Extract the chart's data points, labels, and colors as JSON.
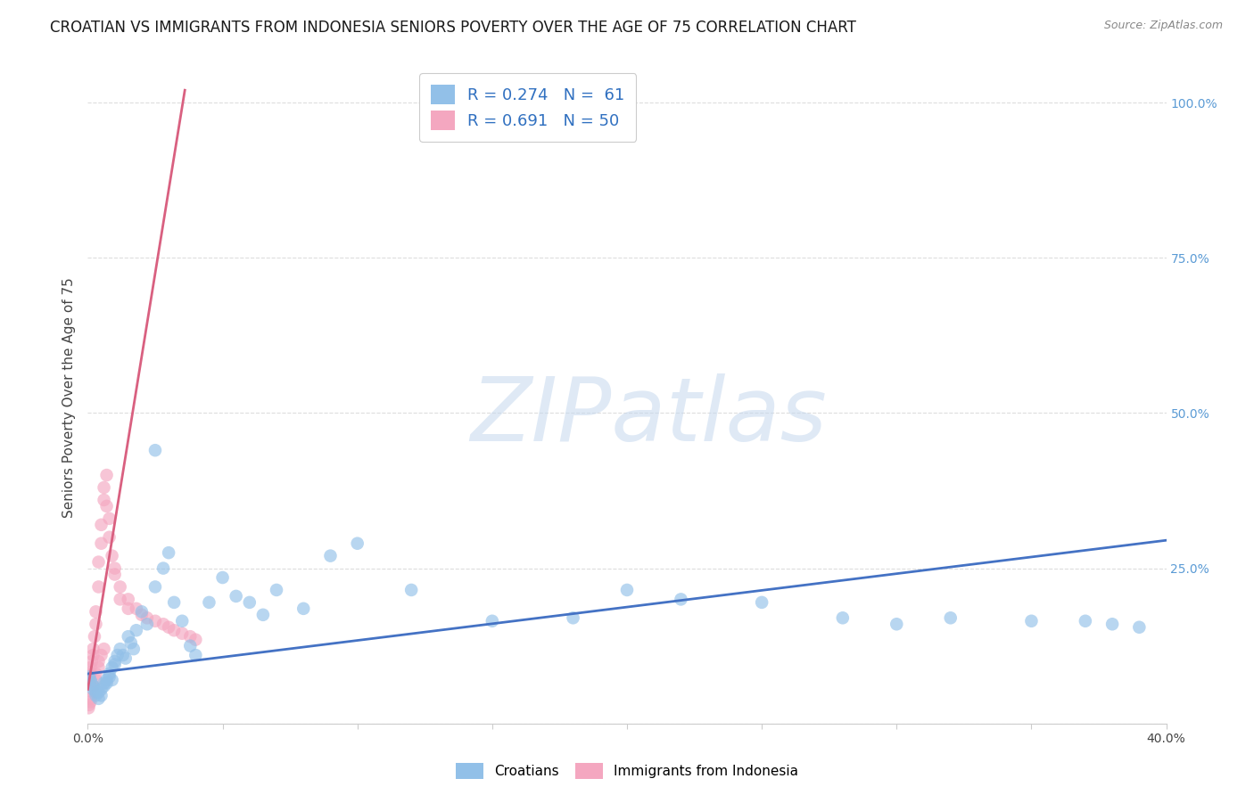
{
  "title": "CROATIAN VS IMMIGRANTS FROM INDONESIA SENIORS POVERTY OVER THE AGE OF 75 CORRELATION CHART",
  "source": "Source: ZipAtlas.com",
  "ylabel": "Seniors Poverty Over the Age of 75",
  "xlim": [
    0.0,
    0.4
  ],
  "ylim": [
    0.0,
    1.05
  ],
  "xticks": [
    0.0,
    0.05,
    0.1,
    0.15,
    0.2,
    0.25,
    0.3,
    0.35,
    0.4
  ],
  "xticklabels": [
    "0.0%",
    "",
    "",
    "",
    "",
    "",
    "",
    "",
    "40.0%"
  ],
  "yticks_right": [
    0.0,
    0.25,
    0.5,
    0.75,
    1.0
  ],
  "yticklabels_right": [
    "",
    "25.0%",
    "50.0%",
    "75.0%",
    "100.0%"
  ],
  "blue_color": "#92C0E8",
  "pink_color": "#F4A7C0",
  "blue_line_color": "#4472C4",
  "pink_line_color": "#D96080",
  "watermark": "ZIPatlas",
  "grid_color": "#DDDDDD",
  "background_color": "#FFFFFF",
  "title_fontsize": 12,
  "axis_label_fontsize": 11,
  "tick_fontsize": 10,
  "legend_fontsize": 13,
  "blue_scatter_x": [
    0.0005,
    0.001,
    0.0015,
    0.002,
    0.002,
    0.003,
    0.003,
    0.004,
    0.004,
    0.005,
    0.005,
    0.006,
    0.006,
    0.007,
    0.007,
    0.008,
    0.008,
    0.009,
    0.009,
    0.01,
    0.01,
    0.011,
    0.012,
    0.013,
    0.014,
    0.015,
    0.016,
    0.017,
    0.018,
    0.02,
    0.022,
    0.025,
    0.028,
    0.03,
    0.032,
    0.035,
    0.038,
    0.04,
    0.045,
    0.05,
    0.055,
    0.06,
    0.065,
    0.07,
    0.08,
    0.09,
    0.1,
    0.12,
    0.15,
    0.18,
    0.2,
    0.22,
    0.25,
    0.28,
    0.3,
    0.32,
    0.35,
    0.37,
    0.38,
    0.39,
    0.025
  ],
  "blue_scatter_y": [
    0.075,
    0.07,
    0.065,
    0.06,
    0.055,
    0.05,
    0.045,
    0.04,
    0.05,
    0.045,
    0.055,
    0.06,
    0.065,
    0.07,
    0.065,
    0.075,
    0.08,
    0.07,
    0.09,
    0.095,
    0.1,
    0.11,
    0.12,
    0.11,
    0.105,
    0.14,
    0.13,
    0.12,
    0.15,
    0.18,
    0.16,
    0.22,
    0.25,
    0.275,
    0.195,
    0.165,
    0.125,
    0.11,
    0.195,
    0.235,
    0.205,
    0.195,
    0.175,
    0.215,
    0.185,
    0.27,
    0.29,
    0.215,
    0.165,
    0.17,
    0.215,
    0.2,
    0.195,
    0.17,
    0.16,
    0.17,
    0.165,
    0.165,
    0.16,
    0.155,
    0.44
  ],
  "pink_scatter_x": [
    0.0003,
    0.0005,
    0.0008,
    0.001,
    0.001,
    0.0015,
    0.002,
    0.002,
    0.0025,
    0.003,
    0.003,
    0.004,
    0.004,
    0.005,
    0.005,
    0.006,
    0.006,
    0.007,
    0.007,
    0.008,
    0.008,
    0.009,
    0.01,
    0.01,
    0.012,
    0.012,
    0.015,
    0.015,
    0.018,
    0.02,
    0.022,
    0.025,
    0.028,
    0.03,
    0.032,
    0.035,
    0.038,
    0.04,
    0.0003,
    0.0005,
    0.001,
    0.001,
    0.002,
    0.002,
    0.003,
    0.003,
    0.004,
    0.004,
    0.005,
    0.006
  ],
  "pink_scatter_y": [
    0.07,
    0.075,
    0.078,
    0.082,
    0.09,
    0.1,
    0.11,
    0.12,
    0.14,
    0.16,
    0.18,
    0.22,
    0.26,
    0.29,
    0.32,
    0.36,
    0.38,
    0.4,
    0.35,
    0.33,
    0.3,
    0.27,
    0.25,
    0.24,
    0.22,
    0.2,
    0.2,
    0.185,
    0.185,
    0.175,
    0.17,
    0.165,
    0.16,
    0.155,
    0.15,
    0.145,
    0.14,
    0.135,
    0.025,
    0.03,
    0.035,
    0.04,
    0.05,
    0.06,
    0.07,
    0.08,
    0.09,
    0.1,
    0.11,
    0.12
  ],
  "blue_trend_x": [
    0.0,
    0.4
  ],
  "blue_trend_y": [
    0.08,
    0.295
  ],
  "pink_trend_x": [
    0.0,
    0.036
  ],
  "pink_trend_y": [
    0.055,
    1.02
  ]
}
